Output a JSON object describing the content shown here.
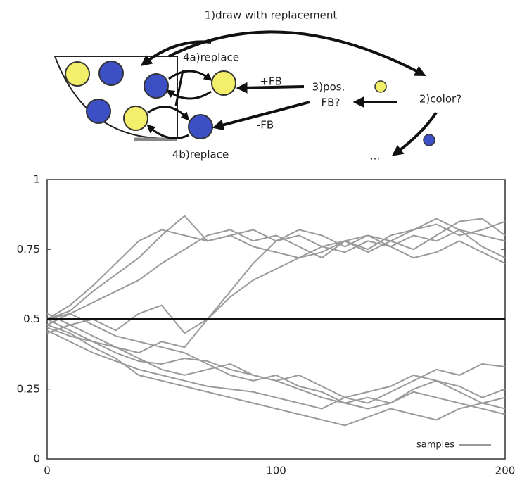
{
  "diagram": {
    "labels": {
      "draw": "1)draw with replacement",
      "replace_a": "4a)replace",
      "pos_fb": "+FB",
      "pos_q1": "3)pos.",
      "pos_q2": "FB?",
      "color": "2)color?",
      "neg_fb": "-FB",
      "replace_b": "4b)replace",
      "more": "..."
    }
  },
  "chart_data": {
    "type": "line",
    "x": [
      0,
      10,
      20,
      30,
      40,
      50,
      60,
      70,
      80,
      90,
      100,
      110,
      120,
      130,
      140,
      150,
      160,
      170,
      180,
      190,
      200
    ],
    "xlim": [
      0,
      200
    ],
    "xticks": [
      0,
      100,
      200
    ],
    "ylim": [
      0,
      1
    ],
    "yticks": [
      0,
      0.25,
      0.5,
      0.75,
      1
    ],
    "reference_line": {
      "y": 0.5,
      "color": "#111111"
    },
    "legend": {
      "label": "samples",
      "position": "lower right",
      "color": "#9a9a9a"
    },
    "series": [
      {
        "color": "#9a9a9a",
        "values": [
          0.5,
          0.55,
          0.62,
          0.7,
          0.78,
          0.82,
          0.8,
          0.78,
          0.8,
          0.76,
          0.74,
          0.72,
          0.76,
          0.78,
          0.75,
          0.8,
          0.82,
          0.84,
          0.8,
          0.82,
          0.85
        ]
      },
      {
        "color": "#9a9a9a",
        "values": [
          0.5,
          0.53,
          0.6,
          0.66,
          0.72,
          0.8,
          0.87,
          0.78,
          0.8,
          0.82,
          0.78,
          0.8,
          0.76,
          0.74,
          0.78,
          0.76,
          0.8,
          0.78,
          0.82,
          0.8,
          0.78
        ]
      },
      {
        "color": "#9a9a9a",
        "values": [
          0.48,
          0.52,
          0.56,
          0.6,
          0.64,
          0.7,
          0.75,
          0.8,
          0.82,
          0.78,
          0.8,
          0.76,
          0.72,
          0.78,
          0.74,
          0.78,
          0.82,
          0.86,
          0.82,
          0.76,
          0.72
        ]
      },
      {
        "color": "#9a9a9a",
        "values": [
          0.45,
          0.48,
          0.5,
          0.46,
          0.52,
          0.55,
          0.45,
          0.5,
          0.6,
          0.7,
          0.78,
          0.82,
          0.8,
          0.76,
          0.8,
          0.78,
          0.75,
          0.8,
          0.85,
          0.86,
          0.8
        ]
      },
      {
        "color": "#9a9a9a",
        "values": [
          0.47,
          0.44,
          0.42,
          0.4,
          0.38,
          0.42,
          0.4,
          0.5,
          0.58,
          0.64,
          0.68,
          0.72,
          0.74,
          0.78,
          0.8,
          0.76,
          0.72,
          0.74,
          0.78,
          0.74,
          0.7
        ]
      },
      {
        "color": "#9a9a9a",
        "values": [
          0.5,
          0.46,
          0.42,
          0.38,
          0.35,
          0.34,
          0.36,
          0.35,
          0.32,
          0.3,
          0.28,
          0.25,
          0.22,
          0.2,
          0.18,
          0.2,
          0.24,
          0.22,
          0.2,
          0.18,
          0.16
        ]
      },
      {
        "color": "#9a9a9a",
        "values": [
          0.52,
          0.48,
          0.44,
          0.4,
          0.36,
          0.32,
          0.3,
          0.32,
          0.34,
          0.3,
          0.28,
          0.3,
          0.26,
          0.22,
          0.2,
          0.24,
          0.28,
          0.32,
          0.3,
          0.34,
          0.33
        ]
      },
      {
        "color": "#9a9a9a",
        "values": [
          0.48,
          0.45,
          0.4,
          0.36,
          0.3,
          0.28,
          0.26,
          0.24,
          0.22,
          0.2,
          0.18,
          0.16,
          0.14,
          0.12,
          0.15,
          0.18,
          0.16,
          0.14,
          0.18,
          0.2,
          0.22
        ]
      },
      {
        "color": "#9a9a9a",
        "values": [
          0.5,
          0.52,
          0.48,
          0.44,
          0.42,
          0.4,
          0.38,
          0.34,
          0.3,
          0.28,
          0.3,
          0.26,
          0.24,
          0.2,
          0.22,
          0.2,
          0.25,
          0.28,
          0.26,
          0.22,
          0.25
        ]
      },
      {
        "color": "#9a9a9a",
        "values": [
          0.46,
          0.42,
          0.38,
          0.35,
          0.32,
          0.3,
          0.28,
          0.26,
          0.25,
          0.24,
          0.22,
          0.2,
          0.18,
          0.22,
          0.24,
          0.26,
          0.3,
          0.28,
          0.24,
          0.2,
          0.18
        ]
      }
    ]
  }
}
